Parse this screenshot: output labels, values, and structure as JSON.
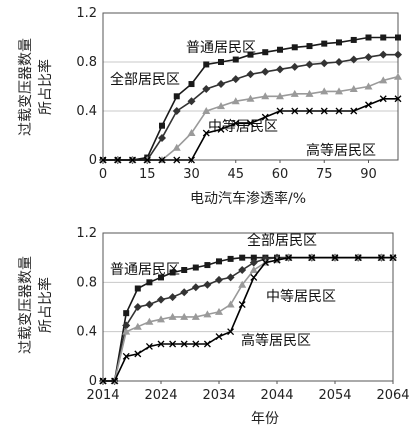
{
  "chart_data": [
    {
      "type": "line",
      "title": "",
      "xlabel": "电动汽车渗透率/%",
      "ylabel": [
        "过载变压器数量",
        "所占比率"
      ],
      "xlim": [
        0,
        100
      ],
      "ylim": [
        0,
        1.2
      ],
      "x_ticks": [
        "0",
        "15",
        "30",
        "45",
        "60",
        "75",
        "90"
      ],
      "y_ticks": [
        "0",
        "0.4",
        "0.8",
        "1.2"
      ],
      "grid": "horizontal",
      "series": [
        {
          "name": "普通居民区",
          "color": "#1a1a1a",
          "marker": "square",
          "x": [
            0,
            5,
            10,
            15,
            20,
            25,
            30,
            35,
            40,
            45,
            50,
            55,
            60,
            65,
            70,
            75,
            80,
            85,
            90,
            95,
            100
          ],
          "y": [
            0,
            0,
            0,
            0.02,
            0.28,
            0.52,
            0.62,
            0.78,
            0.8,
            0.82,
            0.86,
            0.88,
            0.9,
            0.92,
            0.93,
            0.95,
            0.96,
            0.98,
            1.0,
            1.0,
            1.0
          ]
        },
        {
          "name": "全部居民区",
          "color": "#333333",
          "marker": "diamond",
          "x": [
            0,
            5,
            10,
            15,
            20,
            25,
            30,
            35,
            40,
            45,
            50,
            55,
            60,
            65,
            70,
            75,
            80,
            85,
            90,
            95,
            100
          ],
          "y": [
            0,
            0,
            0,
            0,
            0.18,
            0.4,
            0.48,
            0.58,
            0.62,
            0.66,
            0.7,
            0.72,
            0.74,
            0.76,
            0.78,
            0.79,
            0.8,
            0.82,
            0.84,
            0.86,
            0.86
          ]
        },
        {
          "name": "中等居民区",
          "color": "#9a9a9a",
          "marker": "triangle",
          "x": [
            0,
            5,
            10,
            15,
            20,
            25,
            30,
            35,
            40,
            45,
            50,
            55,
            60,
            65,
            70,
            75,
            80,
            85,
            90,
            95,
            100
          ],
          "y": [
            0,
            0,
            0,
            0,
            0,
            0.1,
            0.22,
            0.4,
            0.44,
            0.48,
            0.5,
            0.52,
            0.52,
            0.54,
            0.54,
            0.56,
            0.56,
            0.58,
            0.6,
            0.65,
            0.68
          ]
        },
        {
          "name": "高等居民区",
          "color": "#000000",
          "marker": "cross",
          "x": [
            0,
            5,
            10,
            15,
            20,
            25,
            30,
            35,
            40,
            45,
            50,
            55,
            60,
            65,
            70,
            75,
            80,
            85,
            90,
            95,
            100
          ],
          "y": [
            0,
            0,
            0,
            0,
            0,
            0,
            0,
            0.22,
            0.25,
            0.3,
            0.3,
            0.35,
            0.4,
            0.4,
            0.4,
            0.4,
            0.4,
            0.4,
            0.45,
            0.5,
            0.5
          ]
        }
      ]
    },
    {
      "type": "line",
      "title": "",
      "xlabel": "年份",
      "ylabel": [
        "过载变压器数量",
        "所占比率"
      ],
      "xlim": [
        2014,
        2064
      ],
      "ylim": [
        0,
        1.2
      ],
      "x_ticks": [
        "2014",
        "2024",
        "2034",
        "2044",
        "2054",
        "2064"
      ],
      "y_ticks": [
        "0",
        "0.4",
        "0.8",
        "1.2"
      ],
      "grid": "horizontal",
      "series": [
        {
          "name": "普通居民区",
          "color": "#1a1a1a",
          "marker": "square",
          "x": [
            2014,
            2016,
            2018,
            2020,
            2022,
            2024,
            2026,
            2028,
            2030,
            2032,
            2034,
            2036,
            2038,
            2040,
            2042,
            2044,
            2046,
            2050,
            2054,
            2058,
            2062,
            2064
          ],
          "y": [
            0,
            0,
            0.55,
            0.75,
            0.8,
            0.84,
            0.88,
            0.9,
            0.92,
            0.94,
            0.97,
            0.99,
            1.0,
            1.0,
            1.0,
            1.0,
            1.0,
            1.0,
            1.0,
            1.0,
            1.0,
            1.0
          ]
        },
        {
          "name": "全部居民区",
          "color": "#333333",
          "marker": "diamond",
          "x": [
            2014,
            2016,
            2018,
            2020,
            2022,
            2024,
            2026,
            2028,
            2030,
            2032,
            2034,
            2036,
            2038,
            2040,
            2042,
            2044,
            2046,
            2050,
            2054,
            2058,
            2062,
            2064
          ],
          "y": [
            0,
            0,
            0.45,
            0.6,
            0.62,
            0.66,
            0.68,
            0.72,
            0.76,
            0.78,
            0.82,
            0.84,
            0.9,
            0.96,
            0.99,
            1.0,
            1.0,
            1.0,
            1.0,
            1.0,
            1.0,
            1.0
          ]
        },
        {
          "name": "中等居民区",
          "color": "#9a9a9a",
          "marker": "triangle",
          "x": [
            2014,
            2016,
            2018,
            2020,
            2022,
            2024,
            2026,
            2028,
            2030,
            2032,
            2034,
            2036,
            2038,
            2040,
            2042,
            2044,
            2046,
            2050,
            2054,
            2058,
            2062,
            2064
          ],
          "y": [
            0,
            0,
            0.4,
            0.44,
            0.48,
            0.5,
            0.52,
            0.52,
            0.52,
            0.54,
            0.56,
            0.62,
            0.78,
            0.9,
            0.96,
            0.98,
            1.0,
            1.0,
            1.0,
            1.0,
            1.0,
            1.0
          ]
        },
        {
          "name": "高等居民区",
          "color": "#000000",
          "marker": "cross",
          "x": [
            2014,
            2016,
            2018,
            2020,
            2022,
            2024,
            2026,
            2028,
            2030,
            2032,
            2034,
            2036,
            2038,
            2040,
            2042,
            2044,
            2046,
            2050,
            2054,
            2058,
            2062,
            2064
          ],
          "y": [
            0,
            0,
            0.2,
            0.22,
            0.28,
            0.3,
            0.3,
            0.3,
            0.3,
            0.3,
            0.36,
            0.4,
            0.62,
            0.84,
            0.96,
            0.98,
            1.0,
            1.0,
            1.0,
            1.0,
            1.0,
            1.0
          ]
        }
      ]
    }
  ]
}
